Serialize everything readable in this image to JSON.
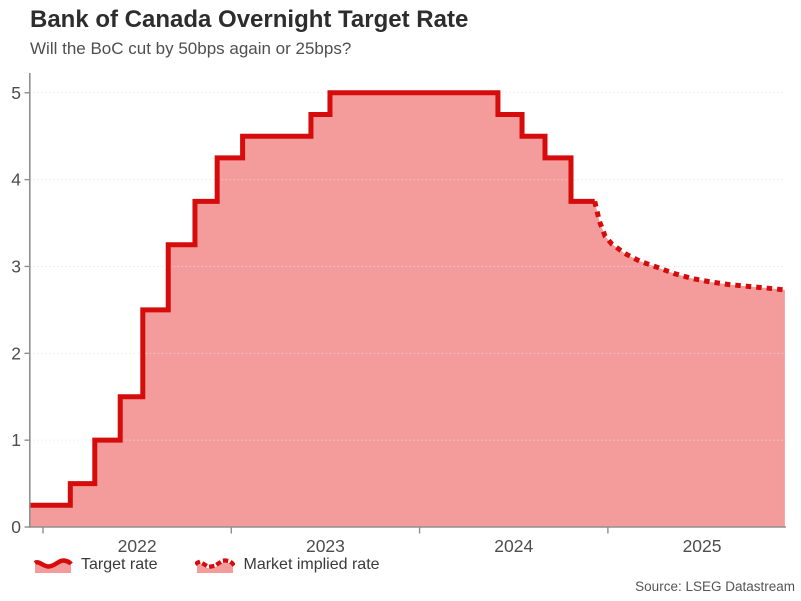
{
  "legend": {
    "items": [
      {
        "label": "Target rate",
        "style": "solid"
      },
      {
        "label": "Market implied rate",
        "style": "dotted"
      }
    ]
  },
  "chart_data": {
    "type": "area",
    "title": "Bank of Canada Overnight Target Rate",
    "subtitle": "Will the BoC cut by 50bps again or 25bps?",
    "source": "Source: LSEG Datastream",
    "xlabel": "",
    "ylabel": "",
    "ylim": [
      0,
      5.2
    ],
    "xlim": [
      2021.93,
      2025.95
    ],
    "grid": "horizontal-dotted",
    "legend_position": "bottom-left",
    "yticks": [
      0,
      1,
      2,
      3,
      4,
      5
    ],
    "xticks": [
      {
        "label": "2022",
        "pos": 2022.5
      },
      {
        "label": "2023",
        "pos": 2023.5
      },
      {
        "label": "2024",
        "pos": 2024.5
      },
      {
        "label": "2025",
        "pos": 2025.5
      }
    ],
    "year_boundary_ticks": [
      2022,
      2023,
      2024,
      2025
    ],
    "series": [
      {
        "name": "Target rate",
        "style": "solid-step",
        "points": [
          [
            2021.93,
            0.25
          ],
          [
            2022.145,
            0.5
          ],
          [
            2022.275,
            1.0
          ],
          [
            2022.41,
            1.5
          ],
          [
            2022.53,
            2.5
          ],
          [
            2022.665,
            3.25
          ],
          [
            2022.807,
            3.75
          ],
          [
            2022.925,
            4.25
          ],
          [
            2023.06,
            4.5
          ],
          [
            2023.423,
            4.75
          ],
          [
            2023.524,
            5.0
          ],
          [
            2024.416,
            4.75
          ],
          [
            2024.544,
            4.5
          ],
          [
            2024.666,
            4.25
          ],
          [
            2024.804,
            3.75
          ],
          [
            2024.93,
            3.75
          ]
        ]
      },
      {
        "name": "Market implied rate",
        "style": "dotted",
        "points": [
          [
            2024.93,
            3.75
          ],
          [
            2024.955,
            3.52
          ],
          [
            2024.985,
            3.35
          ],
          [
            2025.02,
            3.26
          ],
          [
            2025.09,
            3.15
          ],
          [
            2025.17,
            3.06
          ],
          [
            2025.25,
            3.0
          ],
          [
            2025.35,
            2.92
          ],
          [
            2025.45,
            2.86
          ],
          [
            2025.55,
            2.82
          ],
          [
            2025.65,
            2.79
          ],
          [
            2025.75,
            2.77
          ],
          [
            2025.85,
            2.75
          ],
          [
            2025.94,
            2.73
          ]
        ]
      }
    ],
    "colors": {
      "line": "#d60c0c",
      "fill": "#f49c9c",
      "grid": "#e0e0e0",
      "axis": "#8f8f8f",
      "title": "#2d2d2d",
      "subtitle": "#4f4f4f",
      "tick": "#4d4d4d",
      "source": "#555555"
    }
  }
}
